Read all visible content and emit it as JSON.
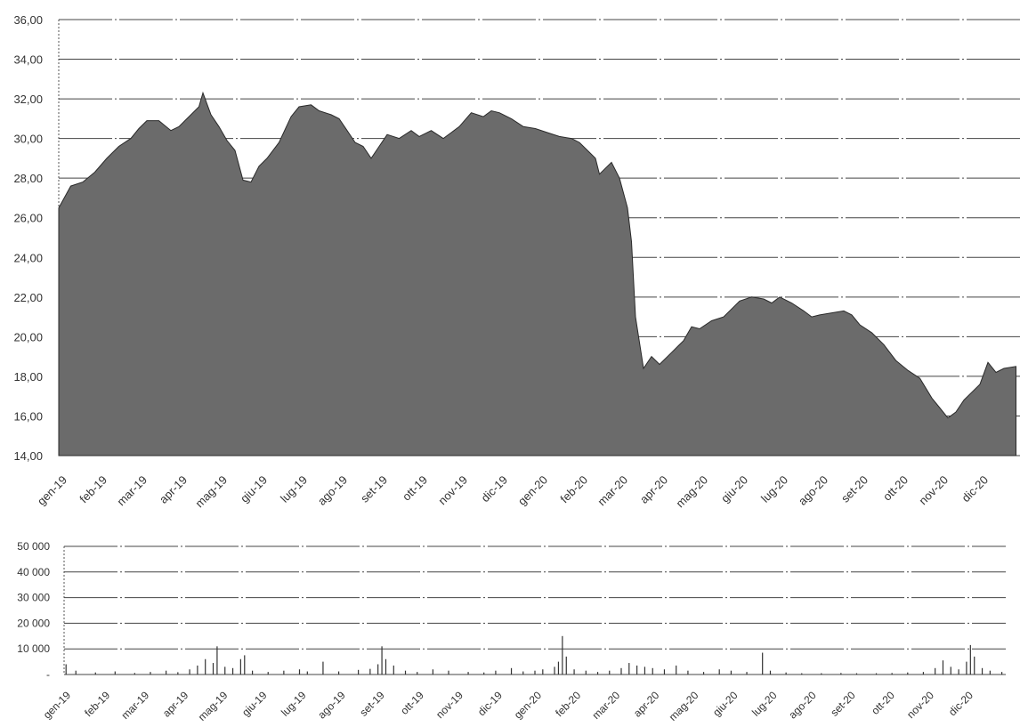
{
  "chart_data": [
    {
      "type": "area",
      "title": "",
      "xlabel": "",
      "ylabel": "",
      "ylim": [
        14,
        36
      ],
      "yticks": [
        "14,00",
        "16,00",
        "18,00",
        "20,00",
        "22,00",
        "24,00",
        "26,00",
        "28,00",
        "30,00",
        "32,00",
        "34,00",
        "36,00"
      ],
      "categories": [
        "gen-19",
        "feb-19",
        "mar-19",
        "apr-19",
        "mag-19",
        "giu-19",
        "lug-19",
        "ago-19",
        "set-19",
        "ott-19",
        "nov-19",
        "dic-19",
        "gen-20",
        "feb-20",
        "mar-20",
        "apr-20",
        "mag-20",
        "giu-20",
        "lug-20",
        "ago-20",
        "set-20",
        "ott-20",
        "nov-20",
        "dic-20"
      ],
      "grid": true,
      "series": [
        {
          "values": [
            [
              0,
              26.5
            ],
            [
              0.3,
              27.6
            ],
            [
              0.6,
              27.8
            ],
            [
              0.9,
              28.3
            ],
            [
              1.2,
              29.0
            ],
            [
              1.5,
              29.6
            ],
            [
              1.8,
              30.0
            ],
            [
              2.0,
              30.5
            ],
            [
              2.2,
              30.9
            ],
            [
              2.5,
              30.9
            ],
            [
              2.8,
              30.4
            ],
            [
              3.0,
              30.6
            ],
            [
              3.2,
              31.0
            ],
            [
              3.5,
              31.6
            ],
            [
              3.6,
              32.3
            ],
            [
              3.8,
              31.2
            ],
            [
              4.0,
              30.6
            ],
            [
              4.2,
              29.9
            ],
            [
              4.4,
              29.4
            ],
            [
              4.6,
              27.9
            ],
            [
              4.8,
              27.8
            ],
            [
              5.0,
              28.6
            ],
            [
              5.2,
              29.0
            ],
            [
              5.5,
              29.8
            ],
            [
              5.8,
              31.1
            ],
            [
              6.0,
              31.6
            ],
            [
              6.3,
              31.7
            ],
            [
              6.5,
              31.4
            ],
            [
              6.8,
              31.2
            ],
            [
              7.0,
              31.0
            ],
            [
              7.2,
              30.4
            ],
            [
              7.4,
              29.8
            ],
            [
              7.6,
              29.6
            ],
            [
              7.8,
              29.0
            ],
            [
              8.0,
              29.6
            ],
            [
              8.2,
              30.2
            ],
            [
              8.5,
              30.0
            ],
            [
              8.8,
              30.4
            ],
            [
              9.0,
              30.1
            ],
            [
              9.3,
              30.4
            ],
            [
              9.6,
              30.0
            ],
            [
              9.8,
              30.3
            ],
            [
              10.0,
              30.6
            ],
            [
              10.3,
              31.3
            ],
            [
              10.6,
              31.1
            ],
            [
              10.8,
              31.4
            ],
            [
              11.0,
              31.3
            ],
            [
              11.3,
              31.0
            ],
            [
              11.6,
              30.6
            ],
            [
              11.9,
              30.5
            ],
            [
              12.2,
              30.3
            ],
            [
              12.5,
              30.1
            ],
            [
              12.8,
              30.0
            ],
            [
              13.0,
              29.8
            ],
            [
              13.2,
              29.4
            ],
            [
              13.4,
              29.0
            ],
            [
              13.5,
              28.2
            ],
            [
              13.8,
              28.8
            ],
            [
              14.0,
              28.0
            ],
            [
              14.2,
              26.5
            ],
            [
              14.3,
              24.8
            ],
            [
              14.4,
              21.0
            ],
            [
              14.6,
              18.4
            ],
            [
              14.8,
              19.0
            ],
            [
              15.0,
              18.6
            ],
            [
              15.3,
              19.2
            ],
            [
              15.6,
              19.8
            ],
            [
              15.8,
              20.5
            ],
            [
              16.0,
              20.4
            ],
            [
              16.3,
              20.8
            ],
            [
              16.6,
              21.0
            ],
            [
              16.8,
              21.4
            ],
            [
              17.0,
              21.8
            ],
            [
              17.3,
              22.0
            ],
            [
              17.6,
              21.9
            ],
            [
              17.8,
              21.7
            ],
            [
              18.0,
              22.0
            ],
            [
              18.3,
              21.7
            ],
            [
              18.6,
              21.3
            ],
            [
              18.8,
              21.0
            ],
            [
              19.0,
              21.1
            ],
            [
              19.3,
              21.2
            ],
            [
              19.6,
              21.3
            ],
            [
              19.8,
              21.1
            ],
            [
              20.0,
              20.6
            ],
            [
              20.3,
              20.2
            ],
            [
              20.6,
              19.6
            ],
            [
              20.9,
              18.8
            ],
            [
              21.2,
              18.3
            ],
            [
              21.5,
              17.9
            ],
            [
              21.8,
              16.9
            ],
            [
              22.0,
              16.4
            ],
            [
              22.2,
              15.9
            ],
            [
              22.4,
              16.2
            ],
            [
              22.6,
              16.8
            ],
            [
              22.8,
              17.2
            ],
            [
              23.0,
              17.6
            ],
            [
              23.2,
              18.7
            ],
            [
              23.4,
              18.2
            ],
            [
              23.6,
              18.4
            ],
            [
              23.9,
              18.5
            ]
          ]
        }
      ]
    },
    {
      "type": "bar",
      "title": "",
      "xlabel": "",
      "ylabel": "",
      "ylim": [
        0,
        50000
      ],
      "yticks": [
        "-",
        "10 000",
        "20 000",
        "30 000",
        "40 000",
        "50 000"
      ],
      "categories": [
        "gen-19",
        "feb-19",
        "mar-19",
        "apr-19",
        "mag-19",
        "giu-19",
        "lug-19",
        "ago-19",
        "set-19",
        "ott-19",
        "nov-19",
        "dic-19",
        "gen-20",
        "feb-20",
        "mar-20",
        "apr-20",
        "mag-20",
        "giu-20",
        "lug-20",
        "ago-20",
        "set-20",
        "ott-20",
        "nov-20",
        "dic-20"
      ],
      "grid": true,
      "series": [
        {
          "values": [
            [
              0.05,
              4000
            ],
            [
              0.3,
              1500
            ],
            [
              0.8,
              800
            ],
            [
              1.3,
              1200
            ],
            [
              1.8,
              600
            ],
            [
              2.2,
              1000
            ],
            [
              2.6,
              1500
            ],
            [
              2.9,
              900
            ],
            [
              3.2,
              2000
            ],
            [
              3.4,
              3500
            ],
            [
              3.6,
              6000
            ],
            [
              3.8,
              4500
            ],
            [
              3.9,
              11000
            ],
            [
              4.1,
              3000
            ],
            [
              4.3,
              2500
            ],
            [
              4.5,
              6000
            ],
            [
              4.6,
              7500
            ],
            [
              4.8,
              1500
            ],
            [
              5.2,
              1000
            ],
            [
              5.6,
              1500
            ],
            [
              6.0,
              2000
            ],
            [
              6.2,
              1200
            ],
            [
              6.6,
              5000
            ],
            [
              7.0,
              1200
            ],
            [
              7.5,
              1800
            ],
            [
              7.8,
              2200
            ],
            [
              8.0,
              4000
            ],
            [
              8.1,
              11000
            ],
            [
              8.2,
              6000
            ],
            [
              8.4,
              3500
            ],
            [
              8.7,
              1500
            ],
            [
              9.0,
              1000
            ],
            [
              9.4,
              2000
            ],
            [
              9.8,
              1500
            ],
            [
              10.3,
              1000
            ],
            [
              10.7,
              800
            ],
            [
              11.0,
              1500
            ],
            [
              11.4,
              2500
            ],
            [
              11.7,
              1200
            ],
            [
              12.0,
              1500
            ],
            [
              12.2,
              2000
            ],
            [
              12.5,
              3000
            ],
            [
              12.6,
              5000
            ],
            [
              12.7,
              15000
            ],
            [
              12.8,
              7000
            ],
            [
              13.0,
              2000
            ],
            [
              13.3,
              1500
            ],
            [
              13.6,
              1000
            ],
            [
              13.9,
              1500
            ],
            [
              14.2,
              2500
            ],
            [
              14.4,
              4500
            ],
            [
              14.6,
              3500
            ],
            [
              14.8,
              3000
            ],
            [
              15.0,
              2500
            ],
            [
              15.3,
              2000
            ],
            [
              15.6,
              3500
            ],
            [
              15.9,
              1500
            ],
            [
              16.3,
              1000
            ],
            [
              16.7,
              2000
            ],
            [
              17.0,
              1500
            ],
            [
              17.4,
              1000
            ],
            [
              17.8,
              8500
            ],
            [
              18.0,
              1500
            ],
            [
              18.4,
              800
            ],
            [
              18.8,
              500
            ],
            [
              19.3,
              500
            ],
            [
              19.8,
              600
            ],
            [
              20.2,
              500
            ],
            [
              20.7,
              500
            ],
            [
              21.1,
              600
            ],
            [
              21.5,
              800
            ],
            [
              21.9,
              1000
            ],
            [
              22.2,
              2500
            ],
            [
              22.4,
              5500
            ],
            [
              22.6,
              3000
            ],
            [
              22.8,
              2000
            ],
            [
              23.0,
              5000
            ],
            [
              23.1,
              11500
            ],
            [
              23.2,
              7000
            ],
            [
              23.4,
              2500
            ],
            [
              23.6,
              1500
            ],
            [
              23.9,
              1000
            ]
          ]
        }
      ]
    }
  ]
}
